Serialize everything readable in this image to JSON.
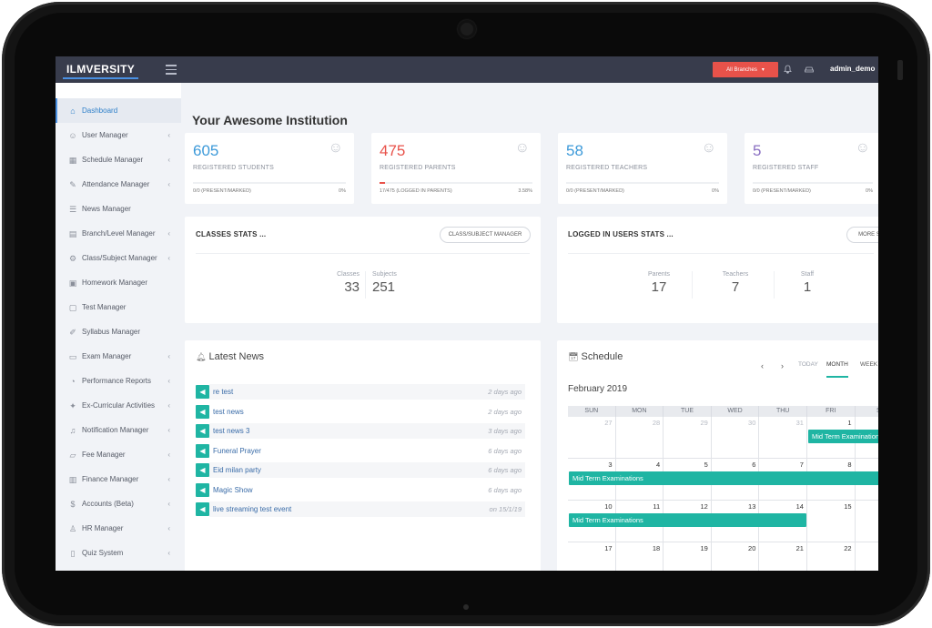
{
  "topbar": {
    "logo": "ILMVERSITY",
    "branch_button": "All Branches",
    "user": "admin_demo"
  },
  "sidebar": {
    "items": [
      {
        "label": "Dashboard",
        "icon": "home-icon",
        "active": true
      },
      {
        "label": "User Manager",
        "icon": "user-icon"
      },
      {
        "label": "Schedule Manager",
        "icon": "calendar-icon"
      },
      {
        "label": "Attendance Manager",
        "icon": "edit-icon"
      },
      {
        "label": "News Manager",
        "icon": "news-icon"
      },
      {
        "label": "Branch/Level Manager",
        "icon": "grid-icon"
      },
      {
        "label": "Class/Subject Manager",
        "icon": "gear-icon"
      },
      {
        "label": "Homework Manager",
        "icon": "book-icon"
      },
      {
        "label": "Test Manager",
        "icon": "document-icon"
      },
      {
        "label": "Syllabus Manager",
        "icon": "pen-icon"
      },
      {
        "label": "Exam Manager",
        "icon": "clipboard-icon"
      },
      {
        "label": "Performance Reports",
        "icon": "chart-icon"
      },
      {
        "label": "Ex-Curricular Activities",
        "icon": "activity-icon"
      },
      {
        "label": "Notification Manager",
        "icon": "bell-icon"
      },
      {
        "label": "Fee Manager",
        "icon": "folder-icon"
      },
      {
        "label": "Finance Manager",
        "icon": "finance-icon"
      },
      {
        "label": "Accounts (Beta)",
        "icon": "money-icon"
      },
      {
        "label": "HR Manager",
        "icon": "person-icon"
      },
      {
        "label": "Quiz System",
        "icon": "quiz-icon"
      }
    ]
  },
  "page_title": "Your Awesome Institution",
  "stats": [
    {
      "value": "605",
      "label": "REGISTERED STUDENTS",
      "foot_left": "0/0 (PRESENT/MARKED)",
      "foot_right": "0%",
      "color": "#3d9ad9",
      "progress": 0
    },
    {
      "value": "475",
      "label": "REGISTERED PARENTS",
      "foot_left": "17/475 (LOGGED IN PARENTS)",
      "foot_right": "3.58%",
      "color": "#e8524a",
      "progress": 3.58
    },
    {
      "value": "58",
      "label": "REGISTERED TEACHERS",
      "foot_left": "0/0 (PRESENT/MARKED)",
      "foot_right": "0%",
      "color": "#3d9ad9",
      "progress": 0
    },
    {
      "value": "5",
      "label": "REGISTERED STAFF",
      "foot_left": "0/0 (PRESENT/MARKED)",
      "foot_right": "0%",
      "color": "#8a6fc2",
      "progress": 0
    }
  ],
  "classes_stats": {
    "title": "CLASSES STATS ...",
    "button": "CLASS/SUBJECT MANAGER",
    "classes_label": "Classes",
    "classes_value": "33",
    "subjects_label": "Subjects",
    "subjects_value": "251"
  },
  "logged_stats": {
    "title": "LOGGED IN USERS STATS ...",
    "button": "MORE S",
    "parents_label": "Parents",
    "parents_value": "17",
    "teachers_label": "Teachers",
    "teachers_value": "7",
    "staff_label": "Staff",
    "staff_value": "1"
  },
  "news": {
    "title": "Latest News",
    "items": [
      {
        "text": "re test",
        "time": "2 days ago"
      },
      {
        "text": "test news",
        "time": "2 days ago"
      },
      {
        "text": "test news 3",
        "time": "3 days ago"
      },
      {
        "text": "Funeral Prayer",
        "time": "6 days ago"
      },
      {
        "text": "Eid milan party",
        "time": "6 days ago"
      },
      {
        "text": "Magic Show",
        "time": "6 days ago"
      },
      {
        "text": "live streaming test event",
        "time": "on 15/1/19"
      }
    ]
  },
  "schedule": {
    "title": "Schedule",
    "prev": "‹",
    "next": "›",
    "today": "TODAY",
    "month_btn": "MONTH",
    "week_btn": "WEEK",
    "month_title": "February 2019",
    "days": [
      "SUN",
      "MON",
      "TUE",
      "WED",
      "THU",
      "FRI",
      "S"
    ],
    "weeks": [
      [
        "27",
        "28",
        "29",
        "30",
        "31",
        "1",
        ""
      ],
      [
        "3",
        "4",
        "5",
        "6",
        "7",
        "8",
        ""
      ],
      [
        "10",
        "11",
        "12",
        "13",
        "14",
        "15",
        ""
      ],
      [
        "17",
        "18",
        "19",
        "20",
        "21",
        "22",
        ""
      ]
    ],
    "event_label": "Mid Term Examinations"
  }
}
